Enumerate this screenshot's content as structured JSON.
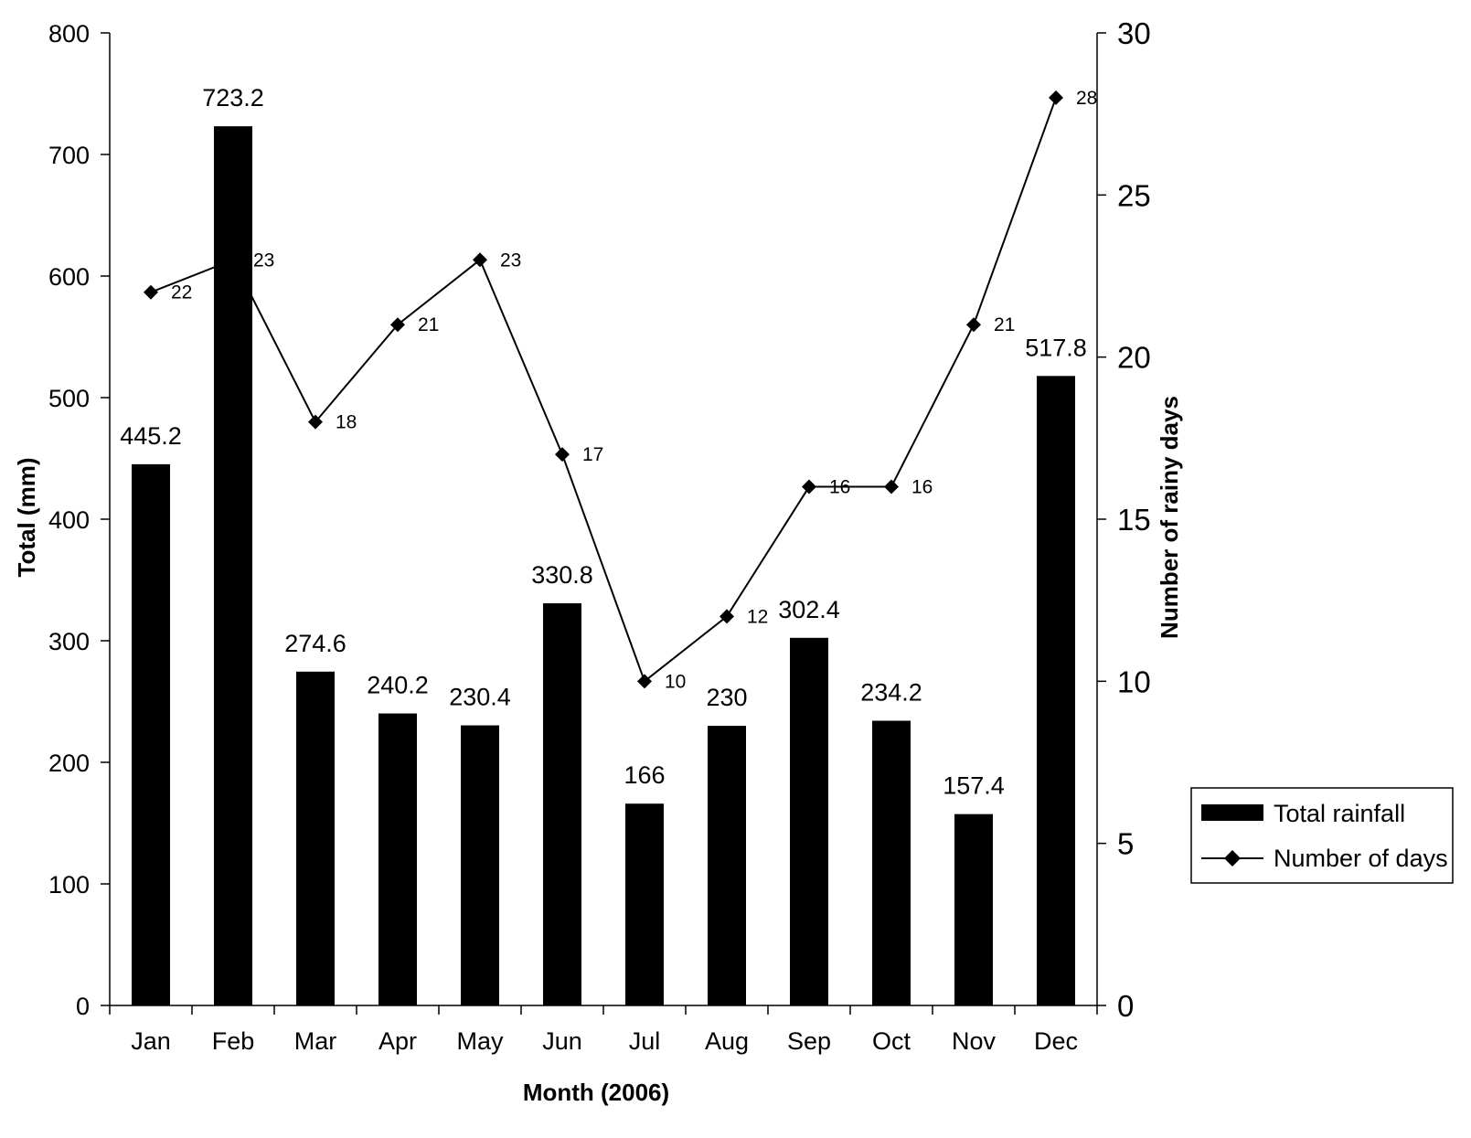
{
  "chart_data": {
    "type": "bar",
    "categories": [
      "Jan",
      "Feb",
      "Mar",
      "Apr",
      "May",
      "Jun",
      "Jul",
      "Aug",
      "Sep",
      "Oct",
      "Nov",
      "Dec"
    ],
    "series": [
      {
        "name": "Total rainfall",
        "type": "bar",
        "axis": "left",
        "color": "#000000",
        "values": [
          445.2,
          723.2,
          274.6,
          240.2,
          230.4,
          330.8,
          166,
          230,
          302.4,
          234.2,
          157.4,
          517.8
        ],
        "labels": [
          "445.2",
          "723.2",
          "274.6",
          "240.2",
          "230.4",
          "330.8",
          "166",
          "230",
          "302.4",
          "234.2",
          "157.4",
          "517.8"
        ]
      },
      {
        "name": "Number of days",
        "type": "line",
        "marker": "diamond",
        "axis": "right",
        "color": "#000000",
        "values": [
          22,
          23,
          18,
          21,
          23,
          17,
          10,
          12,
          16,
          16,
          21,
          28
        ],
        "labels": [
          "22",
          "23",
          "18",
          "21",
          "23",
          "17",
          "10",
          "12",
          "16",
          "16",
          "21",
          "28"
        ]
      }
    ],
    "xlabel": "Month (2006)",
    "ylabel": "Total (mm)",
    "y2label": "Number of rainy days",
    "ylim": [
      0,
      800
    ],
    "y2lim": [
      0,
      30
    ],
    "yticks": [
      "0",
      "100",
      "200",
      "300",
      "400",
      "500",
      "600",
      "700",
      "800"
    ],
    "y2ticks": [
      "0",
      "5",
      "10",
      "15",
      "20",
      "25",
      "30"
    ],
    "grid": false,
    "legend": {
      "position": "right",
      "entries": [
        "Total rainfall",
        "Number of days"
      ]
    }
  }
}
